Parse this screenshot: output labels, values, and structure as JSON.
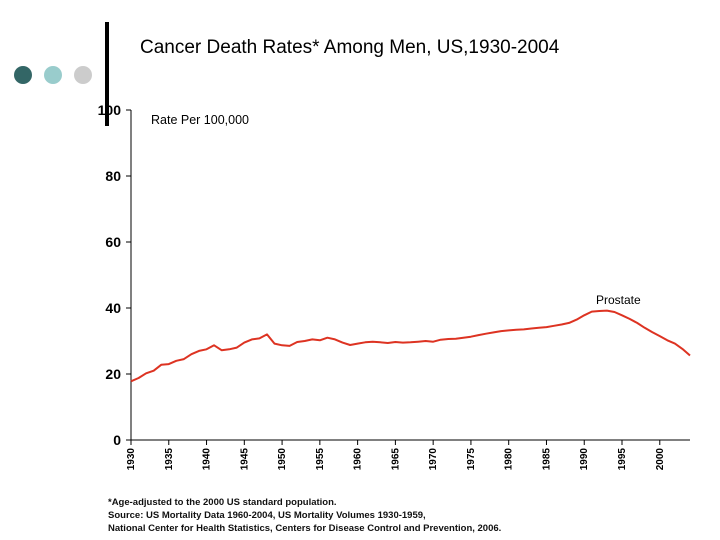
{
  "slide": {
    "title": "Cancer Death Rates* Among Men, US,1930-2004",
    "dot_colors": [
      "#336666",
      "#99cccc",
      "#cccccc"
    ],
    "footnotes": [
      "*Age-adjusted to the 2000 US standard population.",
      "Source:  US Mortality Data 1960-2004, US Mortality Volumes 1930-1959,",
      "National Center for Health Statistics, Centers for Disease Control and Prevention, 2006."
    ]
  },
  "chart_data": {
    "type": "line",
    "title": "Cancer Death Rates* Among Men, US,1930-2004",
    "ylabel": "Rate Per 100,000",
    "xlabel": "",
    "xlim": [
      1930,
      2004
    ],
    "ylim": [
      0,
      100
    ],
    "y_ticks": [
      0,
      20,
      40,
      60,
      80,
      100
    ],
    "x_ticks": [
      1930,
      1935,
      1940,
      1945,
      1950,
      1955,
      1960,
      1965,
      1970,
      1975,
      1980,
      1985,
      1990,
      1995,
      2000
    ],
    "grid": false,
    "line_color": "#dd3322",
    "series": [
      {
        "name": "Prostate",
        "x": [
          1930,
          1931,
          1932,
          1933,
          1934,
          1935,
          1936,
          1937,
          1938,
          1939,
          1940,
          1941,
          1942,
          1943,
          1944,
          1945,
          1946,
          1947,
          1948,
          1949,
          1950,
          1951,
          1952,
          1953,
          1954,
          1955,
          1956,
          1957,
          1958,
          1959,
          1960,
          1961,
          1962,
          1963,
          1964,
          1965,
          1966,
          1967,
          1968,
          1969,
          1970,
          1971,
          1972,
          1973,
          1974,
          1975,
          1976,
          1977,
          1978,
          1979,
          1980,
          1981,
          1982,
          1983,
          1984,
          1985,
          1986,
          1987,
          1988,
          1989,
          1990,
          1991,
          1992,
          1993,
          1994,
          1995,
          1996,
          1997,
          1998,
          1999,
          2000,
          2001,
          2002,
          2003,
          2004
        ],
        "values": [
          17.8,
          18.8,
          20.2,
          21.0,
          22.8,
          23.0,
          24.0,
          24.5,
          26.0,
          27.0,
          27.5,
          28.7,
          27.2,
          27.5,
          28.0,
          29.5,
          30.5,
          30.8,
          32.0,
          29.2,
          28.7,
          28.5,
          29.7,
          30.0,
          30.5,
          30.2,
          31.0,
          30.5,
          29.5,
          28.8,
          29.2,
          29.6,
          29.8,
          29.6,
          29.4,
          29.7,
          29.5,
          29.6,
          29.8,
          30.0,
          29.8,
          30.4,
          30.6,
          30.7,
          31.0,
          31.3,
          31.8,
          32.2,
          32.6,
          33.0,
          33.2,
          33.4,
          33.5,
          33.8,
          34.0,
          34.2,
          34.6,
          35.0,
          35.5,
          36.5,
          37.8,
          38.9,
          39.1,
          39.2,
          38.8,
          37.8,
          36.7,
          35.5,
          34.0,
          32.7,
          31.5,
          30.2,
          29.2,
          27.6,
          25.6
        ]
      }
    ]
  }
}
